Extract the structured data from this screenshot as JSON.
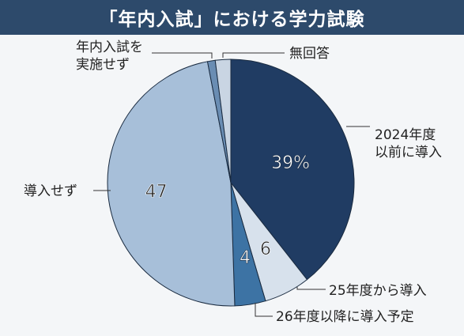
{
  "title": "「年内入試」における学力試験",
  "chart_data": {
    "type": "pie",
    "slices": [
      {
        "label_lines": [
          "2024年度",
          "以前に導入"
        ],
        "value": 39,
        "display": "39%",
        "color": "#203c63",
        "text_color": "#ffffff"
      },
      {
        "label_lines": [
          "25年度から導入"
        ],
        "value": 6,
        "display": "6",
        "color": "#d7e1ec",
        "text_color": "#222222"
      },
      {
        "label_lines": [
          "26年度以降に導入予定"
        ],
        "value": 4,
        "display": "4",
        "color": "#3d73a4",
        "text_color": "#ffffff"
      },
      {
        "label_lines": [
          "導入せず"
        ],
        "value": 47,
        "display": "47",
        "color": "#a7bfd9",
        "text_color": "#222222"
      },
      {
        "label_lines": [
          "年内入試を",
          "実施せず"
        ],
        "value": 1,
        "display": "",
        "color": "#6a8db3",
        "text_color": "#222222"
      },
      {
        "label_lines": [
          "無回答"
        ],
        "value": 2,
        "display": "",
        "color": "#c9d5e3",
        "text_color": "#222222"
      }
    ]
  }
}
